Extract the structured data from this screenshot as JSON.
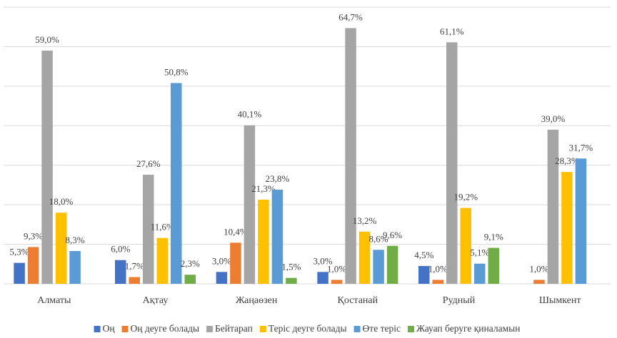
{
  "chart_data": {
    "type": "bar",
    "categories": [
      "Алматы",
      "Ақтау",
      "Жаңаөзен",
      "Қостанай",
      "Рудный",
      "Шымкент"
    ],
    "series": [
      {
        "name": "Оң",
        "color": "#4472c4",
        "values": [
          5.3,
          6.0,
          3.0,
          3.0,
          4.5,
          null
        ],
        "value_labels": [
          "5,3%",
          "6,0%",
          "3,0%",
          "3,0%",
          "4,5%",
          null
        ]
      },
      {
        "name": "Оң деуге болады",
        "color": "#ed7d31",
        "values": [
          9.3,
          1.7,
          10.4,
          1.0,
          1.0,
          1.0
        ],
        "value_labels": [
          "9,3%",
          "1,7%",
          "10,4%",
          "1,0%",
          "1,0%",
          "1,0%"
        ]
      },
      {
        "name": "Бейтарап",
        "color": "#a5a5a5",
        "values": [
          59.0,
          27.6,
          40.1,
          64.7,
          61.1,
          39.0
        ],
        "value_labels": [
          "59,0%",
          "27,6%",
          "40,1%",
          "64,7%",
          "61,1%",
          "39,0%"
        ]
      },
      {
        "name": "Теріс деуге болады",
        "color": "#ffc000",
        "values": [
          18.0,
          11.6,
          21.3,
          13.2,
          19.2,
          28.3
        ],
        "value_labels": [
          "18,0%",
          "11,6%",
          "21,3%",
          "13,2%",
          "19,2%",
          "28,3%"
        ]
      },
      {
        "name": "Өте теріс",
        "color": "#5b9bd5",
        "values": [
          8.3,
          50.8,
          23.8,
          8.6,
          5.1,
          31.7
        ],
        "value_labels": [
          "8,3%",
          "50,8%",
          "23,8%",
          "8,6%",
          "5,1%",
          "31,7%"
        ]
      },
      {
        "name": "Жауап беруге қиналамын",
        "color": "#70ad47",
        "values": [
          null,
          2.3,
          1.5,
          9.6,
          9.1,
          null
        ],
        "value_labels": [
          null,
          "2,3%",
          "1,5%",
          "9,6%",
          "9,1%",
          null
        ]
      }
    ],
    "ylim": [
      0,
      70
    ],
    "yticks": [
      0,
      10,
      20,
      30,
      40,
      50,
      60,
      70
    ],
    "grid": true,
    "legend": "bottom"
  }
}
